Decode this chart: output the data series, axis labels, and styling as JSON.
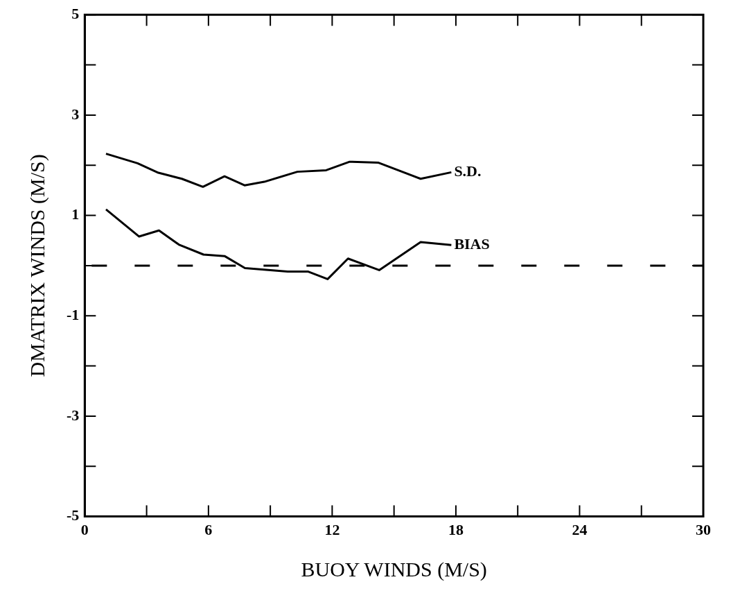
{
  "chart_data": {
    "type": "line",
    "xlabel": "BUOY WINDS (M/S)",
    "ylabel": "DMATRIX WINDS (M/S)",
    "xlim": [
      0,
      30
    ],
    "ylim": [
      -5,
      5
    ],
    "xticks": [
      0,
      {
        "value": 3,
        "label": null
      },
      6,
      {
        "value": 9,
        "label": null
      },
      12,
      {
        "value": 15,
        "label": null
      },
      18,
      {
        "value": 21,
        "label": null
      },
      24,
      {
        "value": 27,
        "label": null
      },
      30
    ],
    "yticks": [
      -5,
      {
        "value": -4,
        "label": null
      },
      -3,
      {
        "value": -2,
        "label": null
      },
      -1,
      {
        "value": 0,
        "label": null
      },
      1,
      {
        "value": 2,
        "label": null
      },
      3,
      {
        "value": 4,
        "label": null
      },
      5
    ],
    "grid": false,
    "legend": false,
    "marker": "none",
    "line_style": "solid",
    "ref_lines": [
      {
        "axis": "y",
        "value": 0,
        "line_style": "dashed"
      }
    ],
    "series": [
      {
        "name": "S.D.",
        "color": "#000000",
        "x": [
          1.03,
          2.56,
          3.57,
          4.71,
          5.73,
          6.78,
          7.75,
          8.71,
          10.31,
          11.71,
          12.85,
          14.25,
          16.29,
          17.78
        ],
        "values": [
          2.23,
          2.04,
          1.85,
          1.73,
          1.57,
          1.78,
          1.6,
          1.67,
          1.87,
          1.9,
          2.07,
          2.05,
          1.73,
          1.86
        ]
      },
      {
        "name": "BIAS",
        "color": "#000000",
        "x": [
          1.03,
          2.63,
          3.6,
          4.56,
          5.76,
          6.78,
          7.77,
          9.84,
          10.84,
          11.78,
          12.77,
          14.28,
          16.29,
          17.78
        ],
        "values": [
          1.12,
          0.58,
          0.7,
          0.42,
          0.22,
          0.19,
          -0.05,
          -0.12,
          -0.12,
          -0.27,
          0.14,
          -0.09,
          0.47,
          0.41
        ]
      }
    ]
  }
}
